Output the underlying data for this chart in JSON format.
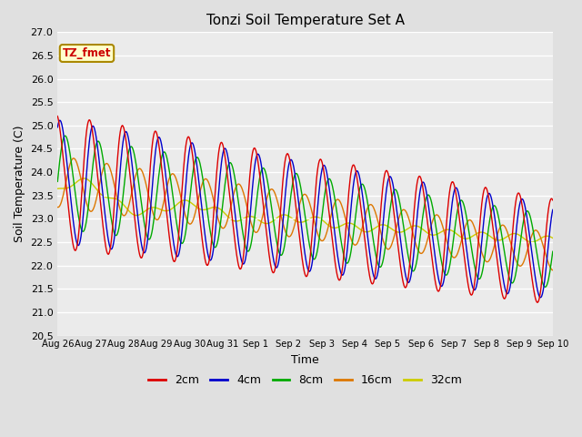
{
  "title": "Tonzi Soil Temperature Set A",
  "xlabel": "Time",
  "ylabel": "Soil Temperature (C)",
  "ylim": [
    20.5,
    27.0
  ],
  "yticks": [
    20.5,
    21.0,
    21.5,
    22.0,
    22.5,
    23.0,
    23.5,
    24.0,
    24.5,
    25.0,
    25.5,
    26.0,
    26.5,
    27.0
  ],
  "colors": {
    "2cm": "#dd0000",
    "4cm": "#0000cc",
    "8cm": "#00aa00",
    "16cm": "#dd7700",
    "32cm": "#cccc00"
  },
  "legend_label": "TZ_fmet",
  "bg_color": "#e0e0e0",
  "plot_bg": "#ebebeb",
  "n_points": 720,
  "start_day": 0,
  "end_day": 15.0,
  "x_tick_days": [
    0,
    1,
    2,
    3,
    4,
    5,
    6,
    7,
    8,
    9,
    10,
    11,
    12,
    13,
    14,
    15
  ],
  "x_tick_labels": [
    "Aug 26",
    "Aug 27",
    "Aug 28",
    "Aug 29",
    "Aug 30",
    "Aug 31",
    "Sep 1",
    "Sep 2",
    "Sep 3",
    "Sep 4",
    "Sep 5",
    "Sep 6",
    "Sep 7",
    "Sep 8",
    "Sep 9",
    "Sep 10"
  ]
}
